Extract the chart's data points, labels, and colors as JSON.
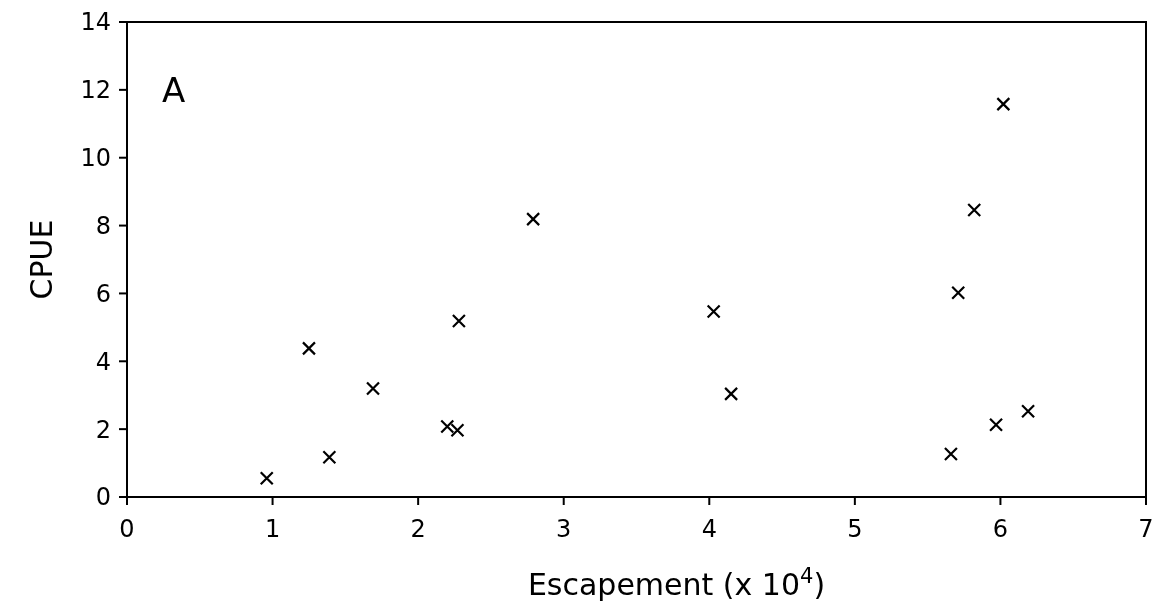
{
  "chart_data": {
    "type": "scatter",
    "xlabel": "Escapement (x 10$^{4}$)",
    "ylabel": "CPUE",
    "annotations": [
      "A"
    ],
    "x": [
      0.96,
      1.25,
      1.39,
      1.69,
      2.2,
      2.27,
      2.28,
      2.79,
      4.03,
      4.15,
      5.66,
      5.71,
      5.82,
      5.97,
      6.02,
      6.19
    ],
    "values": [
      0.55,
      4.38,
      1.17,
      3.2,
      2.08,
      1.97,
      5.19,
      8.19,
      5.47,
      3.04,
      1.27,
      6.02,
      8.46,
      2.13,
      11.58,
      2.53
    ],
    "color": "#000000",
    "marker": "cross",
    "xlim": [
      0,
      7
    ],
    "xticks": [
      0,
      1,
      2,
      3,
      4,
      5,
      6,
      7
    ],
    "ylim": [
      0,
      14
    ],
    "yticks": [
      0,
      2,
      4,
      6,
      8,
      10,
      12,
      14
    ],
    "grid": false
  }
}
